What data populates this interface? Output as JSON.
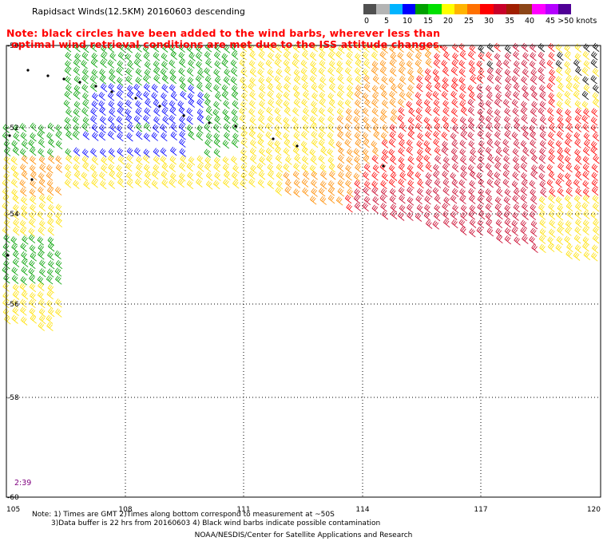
{
  "header": {
    "title": "Rapidsact Winds(12.5KM) 20160603 descending",
    "note_line1": "Note: black circles have been added to the wind barbs, wherever less than",
    "note_line2": "optimal wind retrieval conditions are met due to the ISS attitude changes."
  },
  "legend": {
    "colors": [
      "#505050",
      "#b4b4b4",
      "#00b4ff",
      "#0000ff",
      "#00a000",
      "#00e000",
      "#ffff00",
      "#ffb400",
      "#ff7000",
      "#ff0000",
      "#c80028",
      "#a01e00",
      "#8c4618",
      "#ff00ff",
      "#b400ff",
      "#500096"
    ],
    "labels": [
      "0",
      "5",
      "10",
      "15",
      "20",
      "25",
      "30",
      "35",
      "40",
      "45",
      ">50 knots"
    ]
  },
  "map": {
    "lon_ticks": [
      "105",
      "108",
      "111",
      "114",
      "117",
      "120"
    ],
    "lat_ticks": [
      "-50",
      "-52",
      "-54",
      "-56",
      "-58",
      "-60"
    ],
    "barb_palette": {
      "black": "#000000",
      "green": "#00a000",
      "blue": "#0000ff",
      "yellow": "#ffe000",
      "orange": "#ff8c00",
      "red": "#ff0000",
      "crimson": "#c80028"
    }
  },
  "time_label": "2:39",
  "footer": {
    "note_line1": "Note: 1) Times are GMT 2)Times along bottom correspond to measurement at ~50S",
    "note_line2": "3)Data buffer is 22 hrs from 20160603 4) Black wind barbs indicate possible contamination",
    "credit": "NOAA/NESDIS/Center for Satellite Applications and Research"
  }
}
